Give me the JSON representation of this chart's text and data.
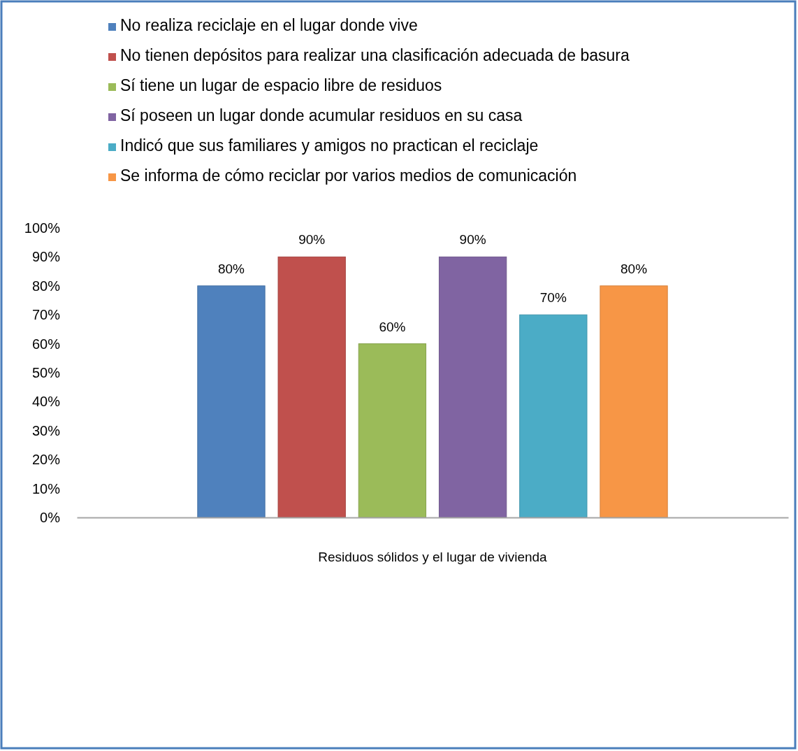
{
  "chart_data": {
    "type": "bar",
    "xlabel": "Residuos sólidos y el lugar de vivienda",
    "categories": [
      null
    ],
    "series": [
      {
        "name": "No realiza reciclaje en el lugar donde vive",
        "color": "#4f81bd",
        "values": [
          80
        ]
      },
      {
        "name": "No tienen depósitos para realizar una clasificación adecuada de basura",
        "color": "#c0504d",
        "values": [
          90
        ]
      },
      {
        "name": "Sí tiene un  lugar de espacio libre de residuos",
        "color": "#9bbb59",
        "values": [
          60
        ]
      },
      {
        "name": "Sí poseen un lugar donde acumular residuos en su casa",
        "color": "#8064a2",
        "values": [
          90
        ]
      },
      {
        "name": "Indicó que sus familiares y amigos no practican el reciclaje",
        "color": "#4bacc6",
        "values": [
          70
        ]
      },
      {
        "name": "Se informa de cómo reciclar por varios medios de comunicación",
        "color": "#f79646",
        "values": [
          80
        ]
      }
    ],
    "ylim": [
      0,
      100
    ],
    "yticks": [
      {
        "value": 0,
        "label": "0%"
      },
      {
        "value": 10,
        "label": "10%"
      },
      {
        "value": 20,
        "label": "20%"
      },
      {
        "value": 30,
        "label": "30%"
      },
      {
        "value": 40,
        "label": "40%"
      },
      {
        "value": 50,
        "label": "50%"
      },
      {
        "value": 60,
        "label": "60%"
      },
      {
        "value": 70,
        "label": "70%"
      },
      {
        "value": 80,
        "label": "80%"
      },
      {
        "value": 90,
        "label": "90%"
      },
      {
        "value": 100,
        "label": "100%"
      }
    ],
    "value_labels": [
      [
        "80%"
      ],
      [
        "90%"
      ],
      [
        "60%"
      ],
      [
        "90%"
      ],
      [
        "70%"
      ],
      [
        "80%"
      ]
    ],
    "legend": "top",
    "grid": false
  }
}
